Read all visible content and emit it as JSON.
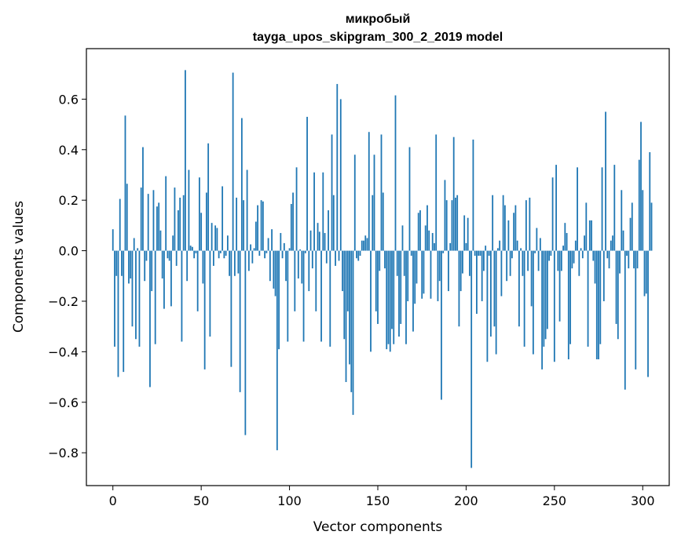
{
  "chart_data": {
    "type": "bar",
    "title": "микробый",
    "subtitle": "tayga_upos_skipgram_300_2_2019 model",
    "xlabel": "Vector components",
    "ylabel": "Components values",
    "xlim": [
      -15,
      315
    ],
    "ylim": [
      -0.93,
      0.8
    ],
    "x_ticks": [
      0,
      50,
      100,
      150,
      200,
      250,
      300
    ],
    "x_tick_labels": [
      "0",
      "50",
      "100",
      "150",
      "200",
      "250",
      "300"
    ],
    "y_ticks": [
      -0.8,
      -0.6,
      -0.4,
      -0.2,
      0.0,
      0.2,
      0.4,
      0.6
    ],
    "y_tick_labels": [
      "−0.8",
      "−0.6",
      "−0.4",
      "−0.2",
      "0.0",
      "0.2",
      "0.4",
      "0.6"
    ],
    "grid": false,
    "bar_color": "#1f77b4",
    "series": [
      {
        "values": [
          0.085,
          -0.38,
          -0.1,
          -0.5,
          0.205,
          -0.1,
          -0.48,
          0.535,
          0.265,
          -0.13,
          -0.11,
          -0.3,
          0.05,
          -0.35,
          0.01,
          -0.38,
          0.25,
          0.41,
          -0.12,
          -0.04,
          0.225,
          -0.54,
          -0.16,
          0.24,
          -0.37,
          0.175,
          0.19,
          0.08,
          -0.11,
          -0.23,
          0.295,
          -0.03,
          -0.04,
          -0.22,
          0.06,
          0.25,
          -0.06,
          0.16,
          0.21,
          -0.36,
          0.22,
          0.715,
          -0.12,
          0.32,
          0.02,
          0.015,
          -0.03,
          -0.01,
          -0.24,
          0.29,
          0.15,
          -0.13,
          -0.47,
          0.23,
          0.425,
          -0.34,
          0.11,
          -0.06,
          0.1,
          0.09,
          -0.03,
          -0.01,
          0.255,
          -0.03,
          -0.02,
          0.06,
          -0.1,
          -0.46,
          0.705,
          -0.1,
          0.21,
          -0.09,
          -0.56,
          0.525,
          0.2,
          -0.73,
          0.32,
          -0.08,
          0.025,
          -0.05,
          0.01,
          0.115,
          0.18,
          -0.02,
          0.2,
          0.195,
          -0.03,
          -0.01,
          0.05,
          -0.12,
          0.085,
          -0.15,
          -0.18,
          -0.79,
          -0.39,
          0.07,
          -0.03,
          0.03,
          -0.12,
          -0.36,
          0.01,
          0.185,
          0.23,
          -0.24,
          0.33,
          -0.11,
          0.005,
          -0.13,
          -0.36,
          -0.01,
          0.53,
          -0.16,
          0.08,
          -0.07,
          0.31,
          -0.24,
          0.11,
          0.075,
          -0.36,
          0.31,
          0.07,
          -0.05,
          0.16,
          -0.38,
          0.46,
          0.22,
          -0.06,
          0.66,
          -0.04,
          0.6,
          -0.16,
          -0.35,
          -0.52,
          -0.24,
          -0.45,
          -0.56,
          -0.65,
          0.38,
          -0.03,
          -0.04,
          -0.02,
          0.04,
          0.04,
          0.06,
          0.05,
          0.47,
          -0.4,
          0.22,
          0.38,
          -0.24,
          -0.29,
          -0.08,
          0.46,
          0.23,
          -0.07,
          -0.39,
          -0.37,
          -0.4,
          -0.31,
          -0.37,
          0.615,
          -0.1,
          -0.34,
          -0.29,
          0.1,
          -0.1,
          -0.37,
          -0.2,
          0.41,
          -0.02,
          -0.32,
          -0.21,
          -0.13,
          0.15,
          0.16,
          -0.19,
          -0.17,
          0.1,
          0.18,
          0.08,
          -0.19,
          0.07,
          0.03,
          0.46,
          -0.2,
          -0.12,
          -0.59,
          -0.01,
          0.28,
          0.2,
          -0.16,
          0.03,
          0.2,
          0.45,
          0.21,
          0.22,
          -0.3,
          -0.16,
          -0.09,
          0.14,
          0.03,
          0.13,
          -0.1,
          -0.86,
          0.44,
          -0.02,
          -0.25,
          -0.02,
          -0.02,
          -0.2,
          -0.08,
          0.02,
          -0.44,
          -0.02,
          -0.34,
          0.22,
          -0.3,
          -0.41,
          0.01,
          0.04,
          -0.18,
          0.22,
          0.18,
          -0.12,
          0.12,
          -0.1,
          -0.03,
          0.15,
          0.18,
          0.04,
          -0.3,
          0.01,
          -0.1,
          -0.38,
          0.2,
          -0.08,
          0.21,
          -0.22,
          -0.41,
          -0.01,
          0.09,
          -0.08,
          0.05,
          -0.47,
          -0.38,
          -0.35,
          -0.31,
          -0.04,
          -0.02,
          0.29,
          -0.44,
          0.34,
          -0.08,
          -0.28,
          -0.08,
          0.02,
          0.11,
          0.07,
          -0.43,
          -0.37,
          -0.07,
          -0.05,
          0.04,
          0.33,
          -0.1,
          0.01,
          -0.03,
          0.06,
          0.19,
          -0.38,
          0.12,
          0.12,
          -0.04,
          -0.13,
          -0.43,
          -0.43,
          -0.37,
          0.33,
          -0.2,
          0.55,
          -0.03,
          -0.07,
          0.04,
          0.06,
          0.34,
          -0.29,
          -0.35,
          -0.09,
          0.24,
          0.08,
          -0.55,
          -0.02,
          -0.07,
          0.13,
          0.19,
          -0.07,
          -0.47,
          -0.07,
          0.36,
          0.51,
          0.24,
          -0.18,
          -0.17,
          -0.5,
          0.39,
          0.19
        ]
      }
    ]
  }
}
